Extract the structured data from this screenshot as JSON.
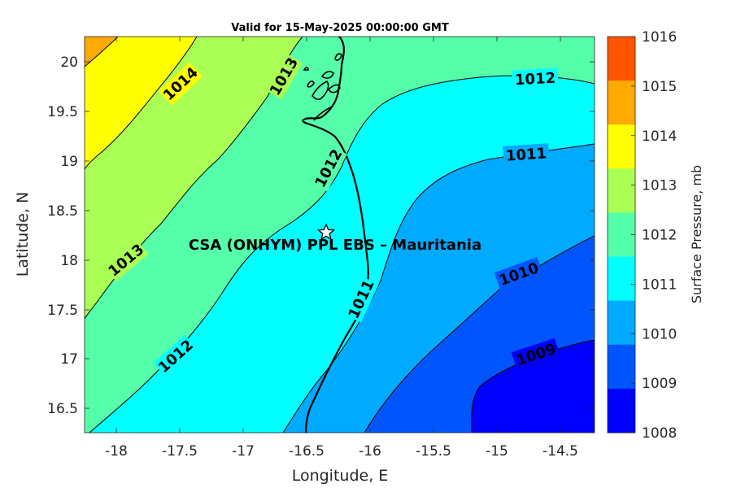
{
  "title": "Valid for 15-May-2025 00:00:00 GMT",
  "x_label": "Longitude, E",
  "y_label": "Latitude, N",
  "colorbar_label": "Surface Pressure, mb",
  "x_ticks": [
    "-18",
    "-17.5",
    "-17",
    "-16.5",
    "-16",
    "-15.5",
    "-15",
    "-14.5"
  ],
  "y_ticks": [
    "20",
    "19.5",
    "19",
    "18.5",
    "18",
    "17.5",
    "17",
    "16.5"
  ],
  "colorbar_ticks": [
    "1016",
    "1015",
    "1014",
    "1013",
    "1012",
    "1011",
    "1010",
    "1009",
    "1008"
  ],
  "colorbar_colors": [
    "#ff5500",
    "#ffaa00",
    "#ffff00",
    "#aaff55",
    "#55ffaa",
    "#00ffff",
    "#00aaff",
    "#0055ff",
    "#0000ff"
  ],
  "contour_labels": [
    {
      "text": "1014"
    },
    {
      "text": "1013"
    },
    {
      "text": "1013"
    },
    {
      "text": "1012"
    },
    {
      "text": "1012"
    },
    {
      "text": "1012"
    },
    {
      "text": "1011"
    },
    {
      "text": "1011"
    },
    {
      "text": "1010"
    },
    {
      "text": "1009"
    }
  ],
  "site": {
    "label": "CSA (ONHYM) PPL EBS  – Mauritania",
    "longitude": -16.33,
    "latitude": 18.28
  },
  "chart_data": {
    "type": "heatmap",
    "title": "Valid for 15-May-2025 00:00:00 GMT",
    "xlabel": "Longitude, E",
    "ylabel": "Latitude, N",
    "xlim": [
      -18.25,
      -14.2
    ],
    "ylim": [
      16.25,
      20.25
    ],
    "colorbar": {
      "label": "Surface Pressure, mb",
      "range": [
        1008,
        1016
      ],
      "levels": [
        1008,
        1009,
        1010,
        1011,
        1012,
        1013,
        1014,
        1015,
        1016
      ]
    },
    "contour_levels": [
      1009,
      1010,
      1011,
      1012,
      1013,
      1014
    ],
    "marker": {
      "label": "CSA (ONHYM) PPL EBS  – Mauritania",
      "longitude": -16.33,
      "latitude": 18.28,
      "symbol": "star"
    }
  }
}
